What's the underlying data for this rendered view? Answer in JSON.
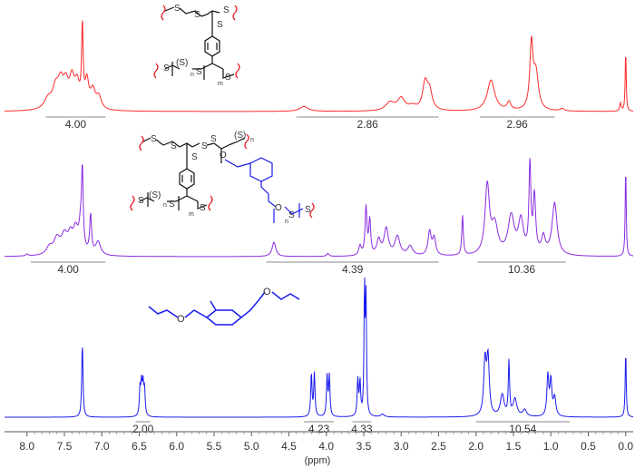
{
  "chart_data": {
    "type": "line",
    "xlabel": "(ppm)",
    "xlim": [
      8.3,
      -0.1
    ],
    "x_ticks": [
      "8.0",
      "7.5",
      "7.0",
      "6.5",
      "6.0",
      "5.5",
      "5.0",
      "4.5",
      "4.0",
      "3.5",
      "3.0",
      "2.5",
      "2.0",
      "1.5",
      "1.0",
      "0.5",
      "0.0"
    ],
    "x_tick_values": [
      8.0,
      7.5,
      7.0,
      6.5,
      6.0,
      5.5,
      5.0,
      4.5,
      4.0,
      3.5,
      3.0,
      2.5,
      2.0,
      1.5,
      1.0,
      0.5,
      0.0
    ],
    "grid": false,
    "legend": "none",
    "series": [
      {
        "color": "#ff2a2a",
        "peaks": [
          {
            "ppm": 7.72,
            "h": 0.12,
            "w": 0.06
          },
          {
            "ppm": 7.62,
            "h": 0.22,
            "w": 0.05
          },
          {
            "ppm": 7.55,
            "h": 0.3,
            "w": 0.05
          },
          {
            "ppm": 7.48,
            "h": 0.25,
            "w": 0.04
          },
          {
            "ppm": 7.4,
            "h": 0.33,
            "w": 0.04
          },
          {
            "ppm": 7.33,
            "h": 0.28,
            "w": 0.04
          },
          {
            "ppm": 7.26,
            "h": 0.95,
            "w": 0.012
          },
          {
            "ppm": 7.2,
            "h": 0.32,
            "w": 0.03
          },
          {
            "ppm": 7.12,
            "h": 0.22,
            "w": 0.04
          },
          {
            "ppm": 7.04,
            "h": 0.15,
            "w": 0.04
          },
          {
            "ppm": 4.3,
            "h": 0.06,
            "w": 0.07
          },
          {
            "ppm": 3.15,
            "h": 0.1,
            "w": 0.07
          },
          {
            "ppm": 3.0,
            "h": 0.15,
            "w": 0.06
          },
          {
            "ppm": 2.85,
            "h": 0.05,
            "w": 0.06
          },
          {
            "ppm": 2.68,
            "h": 0.33,
            "w": 0.04
          },
          {
            "ppm": 2.62,
            "h": 0.22,
            "w": 0.04
          },
          {
            "ppm": 1.8,
            "h": 0.38,
            "w": 0.06
          },
          {
            "ppm": 1.56,
            "h": 0.1,
            "w": 0.03
          },
          {
            "ppm": 1.26,
            "h": 0.78,
            "w": 0.025
          },
          {
            "ppm": 1.2,
            "h": 0.45,
            "w": 0.04
          },
          {
            "ppm": 0.85,
            "h": 0.03,
            "w": 0.03
          },
          {
            "ppm": 0.07,
            "h": 0.1,
            "w": 0.012
          },
          {
            "ppm": 0.0,
            "h": 0.75,
            "w": 0.008
          }
        ],
        "integrals": [
          {
            "from": 7.75,
            "to": 6.95,
            "label": "4.00"
          },
          {
            "from": 4.4,
            "to": 2.5,
            "label": "2.86"
          },
          {
            "from": 1.95,
            "to": 0.95,
            "label": "2.96"
          }
        ]
      },
      {
        "color": "#8a2be2",
        "peaks": [
          {
            "ppm": 8.0,
            "h": 0.02,
            "w": 0.02
          },
          {
            "ppm": 7.7,
            "h": 0.08,
            "w": 0.05
          },
          {
            "ppm": 7.6,
            "h": 0.16,
            "w": 0.05
          },
          {
            "ppm": 7.5,
            "h": 0.19,
            "w": 0.05
          },
          {
            "ppm": 7.42,
            "h": 0.17,
            "w": 0.04
          },
          {
            "ppm": 7.35,
            "h": 0.23,
            "w": 0.04
          },
          {
            "ppm": 7.28,
            "h": 0.3,
            "w": 0.03
          },
          {
            "ppm": 7.26,
            "h": 0.72,
            "w": 0.012
          },
          {
            "ppm": 7.15,
            "h": 0.4,
            "w": 0.015
          },
          {
            "ppm": 7.05,
            "h": 0.14,
            "w": 0.04
          },
          {
            "ppm": 4.7,
            "h": 0.15,
            "w": 0.03
          },
          {
            "ppm": 3.98,
            "h": 0.03,
            "w": 0.02
          },
          {
            "ppm": 3.55,
            "h": 0.1,
            "w": 0.02
          },
          {
            "ppm": 3.47,
            "h": 0.5,
            "w": 0.015
          },
          {
            "ppm": 3.42,
            "h": 0.36,
            "w": 0.015
          },
          {
            "ppm": 3.3,
            "h": 0.16,
            "w": 0.03
          },
          {
            "ppm": 3.2,
            "h": 0.28,
            "w": 0.035
          },
          {
            "ppm": 3.05,
            "h": 0.2,
            "w": 0.04
          },
          {
            "ppm": 2.88,
            "h": 0.1,
            "w": 0.04
          },
          {
            "ppm": 2.62,
            "h": 0.25,
            "w": 0.025
          },
          {
            "ppm": 2.56,
            "h": 0.18,
            "w": 0.025
          },
          {
            "ppm": 2.18,
            "h": 0.42,
            "w": 0.012
          },
          {
            "ppm": 1.85,
            "h": 0.72,
            "w": 0.035
          },
          {
            "ppm": 1.75,
            "h": 0.3,
            "w": 0.05
          },
          {
            "ppm": 1.53,
            "h": 0.4,
            "w": 0.05
          },
          {
            "ppm": 1.4,
            "h": 0.35,
            "w": 0.04
          },
          {
            "ppm": 1.28,
            "h": 0.92,
            "w": 0.015
          },
          {
            "ppm": 1.22,
            "h": 0.6,
            "w": 0.02
          },
          {
            "ppm": 1.1,
            "h": 0.18,
            "w": 0.03
          },
          {
            "ppm": 0.95,
            "h": 0.55,
            "w": 0.04
          },
          {
            "ppm": 0.0,
            "h": 0.95,
            "w": 0.008
          }
        ],
        "integrals": [
          {
            "from": 7.95,
            "to": 6.95,
            "label": "4.00"
          },
          {
            "from": 4.8,
            "to": 2.5,
            "label": "4.39"
          },
          {
            "from": 1.98,
            "to": 0.8,
            "label": "10.36"
          }
        ]
      },
      {
        "color": "#1a1aee",
        "peaks": [
          {
            "ppm": 7.26,
            "h": 0.55,
            "w": 0.01
          },
          {
            "ppm": 6.49,
            "h": 0.2,
            "w": 0.01
          },
          {
            "ppm": 6.47,
            "h": 0.22,
            "w": 0.01
          },
          {
            "ppm": 6.45,
            "h": 0.22,
            "w": 0.01
          },
          {
            "ppm": 6.43,
            "h": 0.2,
            "w": 0.01
          },
          {
            "ppm": 4.2,
            "h": 0.32,
            "w": 0.01
          },
          {
            "ppm": 4.16,
            "h": 0.32,
            "w": 0.01
          },
          {
            "ppm": 3.99,
            "h": 0.3,
            "w": 0.01
          },
          {
            "ppm": 3.96,
            "h": 0.3,
            "w": 0.01
          },
          {
            "ppm": 3.58,
            "h": 0.27,
            "w": 0.01
          },
          {
            "ppm": 3.55,
            "h": 0.25,
            "w": 0.01
          },
          {
            "ppm": 3.49,
            "h": 0.95,
            "w": 0.008
          },
          {
            "ppm": 3.47,
            "h": 0.85,
            "w": 0.008
          },
          {
            "ppm": 3.25,
            "h": 0.02,
            "w": 0.03
          },
          {
            "ppm": 1.88,
            "h": 0.4,
            "w": 0.02
          },
          {
            "ppm": 1.84,
            "h": 0.42,
            "w": 0.02
          },
          {
            "ppm": 1.65,
            "h": 0.16,
            "w": 0.03
          },
          {
            "ppm": 1.56,
            "h": 0.4,
            "w": 0.01
          },
          {
            "ppm": 1.48,
            "h": 0.13,
            "w": 0.03
          },
          {
            "ppm": 1.35,
            "h": 0.05,
            "w": 0.03
          },
          {
            "ppm": 1.04,
            "h": 0.3,
            "w": 0.015
          },
          {
            "ppm": 1.0,
            "h": 0.26,
            "w": 0.015
          },
          {
            "ppm": 0.95,
            "h": 0.14,
            "w": 0.02
          },
          {
            "ppm": 0.0,
            "h": 0.5,
            "w": 0.008
          }
        ],
        "integrals": [
          {
            "from": 6.55,
            "to": 6.35,
            "label": "2.00"
          },
          {
            "from": 4.3,
            "to": 3.9,
            "label": "4.23"
          },
          {
            "from": 3.65,
            "to": 3.4,
            "label": "4.33"
          },
          {
            "from": 2.0,
            "to": 0.75,
            "label": "10.54"
          }
        ]
      }
    ]
  },
  "structures": {
    "sulfur": "S",
    "sulfur_paren": "(S)",
    "oxygen": "O",
    "sub_n": "n",
    "sub_m": "m",
    "color_black": "#111111",
    "color_red": "#e8141e",
    "color_blue": "#1a1aee"
  }
}
